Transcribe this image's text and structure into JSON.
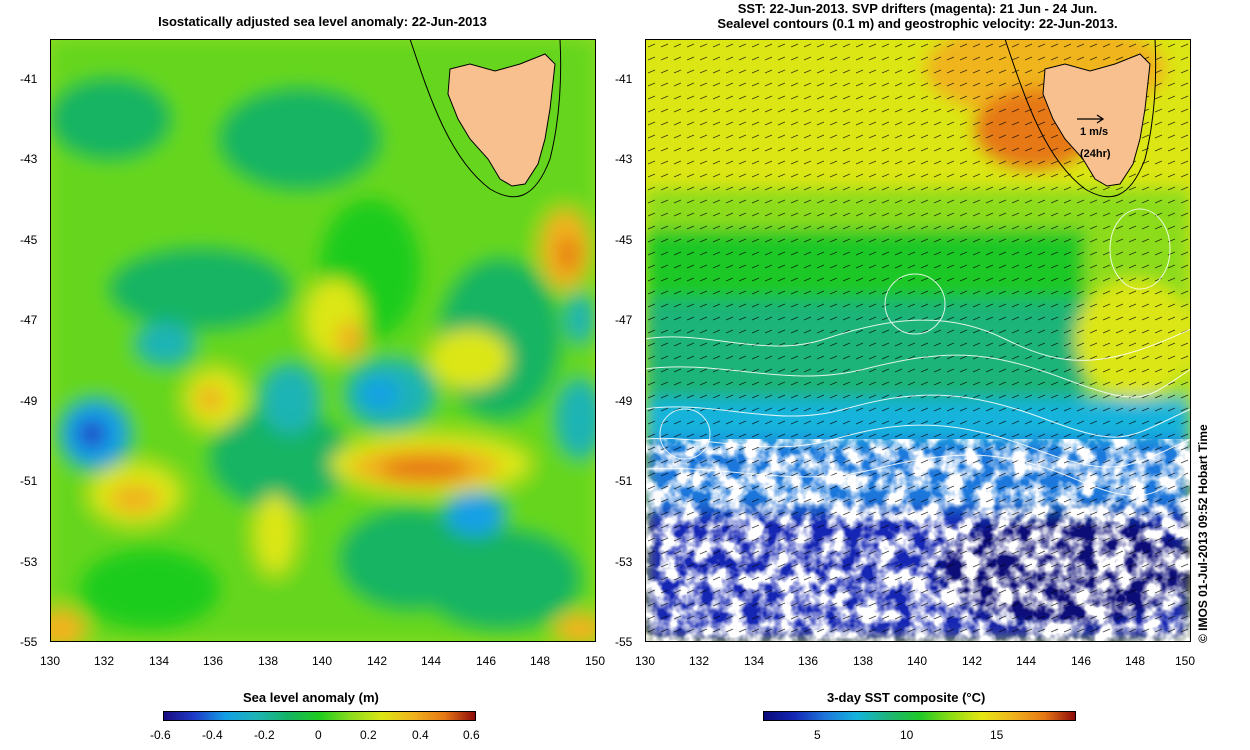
{
  "left_panel": {
    "title": "Isostatically adjusted sea level anomaly: 22-Jun-2013",
    "lat_ticks": [
      "-41",
      "-43",
      "-45",
      "-47",
      "-49",
      "-51",
      "-53",
      "-55"
    ],
    "lon_ticks": [
      "130",
      "132",
      "134",
      "136",
      "138",
      "140",
      "142",
      "144",
      "146",
      "148",
      "150"
    ],
    "colorbar": {
      "title": "Sea level anomaly (m)",
      "ticks": [
        "-0.6",
        "-0.4",
        "-0.2",
        "0",
        "0.2",
        "0.4",
        "0.6"
      ]
    }
  },
  "right_panel": {
    "title_line1": "SST: 22-Jun-2013. SVP drifters (magenta): 21 Jun - 24 Jun.",
    "title_line2": "Sealevel contours (0.1 m) and geostrophic velocity: 22-Jun-2013.",
    "lat_ticks": [
      "-41",
      "-43",
      "-45",
      "-47",
      "-49",
      "-51",
      "-53",
      "-55"
    ],
    "lon_ticks": [
      "130",
      "132",
      "134",
      "136",
      "138",
      "140",
      "142",
      "144",
      "146",
      "148",
      "150"
    ],
    "velocity_key": {
      "speed": "1 m/s",
      "duration": "(24hr)"
    },
    "colorbar": {
      "title": "3-day SST composite (°C)",
      "ticks": [
        "5",
        "10",
        "15"
      ]
    }
  },
  "credit": "© IMOS 01-Jul-2013 09:52 Hobart Time",
  "colors": {
    "land": "#f7c08e",
    "sla_scale": [
      "#1a0a80",
      "#1e3cc8",
      "#14a0e6",
      "#1eb4b4",
      "#14b464",
      "#1ecc1e",
      "#8cdc1e",
      "#dce614",
      "#f0b41e",
      "#e67814",
      "#c82814",
      "#8c0a0a"
    ],
    "sst_scale": [
      "#0a0a78",
      "#1428b4",
      "#1e78dc",
      "#14b4dc",
      "#1eb478",
      "#1ec828",
      "#8cdc14",
      "#e6e614",
      "#f0b41e",
      "#e67814",
      "#c83214",
      "#8c0a0a"
    ]
  }
}
